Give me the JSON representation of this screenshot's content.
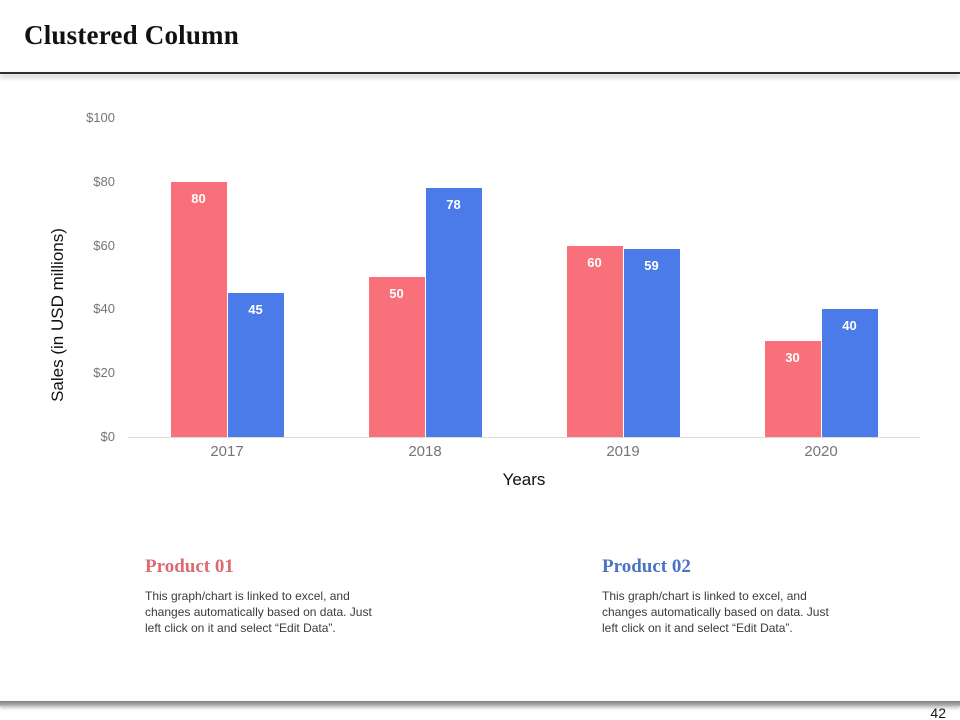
{
  "slide": {
    "title": "Clustered Column",
    "page_number": "42"
  },
  "chart_data": {
    "type": "bar",
    "variant": "clustered-column",
    "title": "",
    "categories": [
      "2017",
      "2018",
      "2019",
      "2020"
    ],
    "series": [
      {
        "name": "Product 01",
        "color": "#FA707A",
        "values": [
          80,
          50,
          60,
          30
        ]
      },
      {
        "name": "Product 02",
        "color": "#4A7BE8",
        "values": [
          45,
          78,
          59,
          40
        ]
      }
    ],
    "xlabel": "Years",
    "ylabel": "Sales (in USD millions)",
    "ylim": [
      0,
      100
    ],
    "yticks": [
      {
        "label": "$100",
        "value": 100
      },
      {
        "label": "$80",
        "value": 80
      },
      {
        "label": "$60",
        "value": 60
      },
      {
        "label": "$40",
        "value": 40
      },
      {
        "label": "$20",
        "value": 20
      },
      {
        "label": "$0",
        "value": 0
      }
    ],
    "grid": false,
    "legend": "none",
    "data_labels": true,
    "axis_line_color": "#dcdcdc",
    "tick_label_color": "#757575"
  },
  "products": [
    {
      "heading": "Product 01",
      "color": "#DD6A6E",
      "body": "This graph/chart is linked to excel, and changes automatically based on data. Just left click on it and select “Edit Data”."
    },
    {
      "heading": "Product 02",
      "color": "#4A73C4",
      "body": "This graph/chart is linked to excel, and changes automatically based on data. Just left click on it and select “Edit Data”."
    }
  ]
}
